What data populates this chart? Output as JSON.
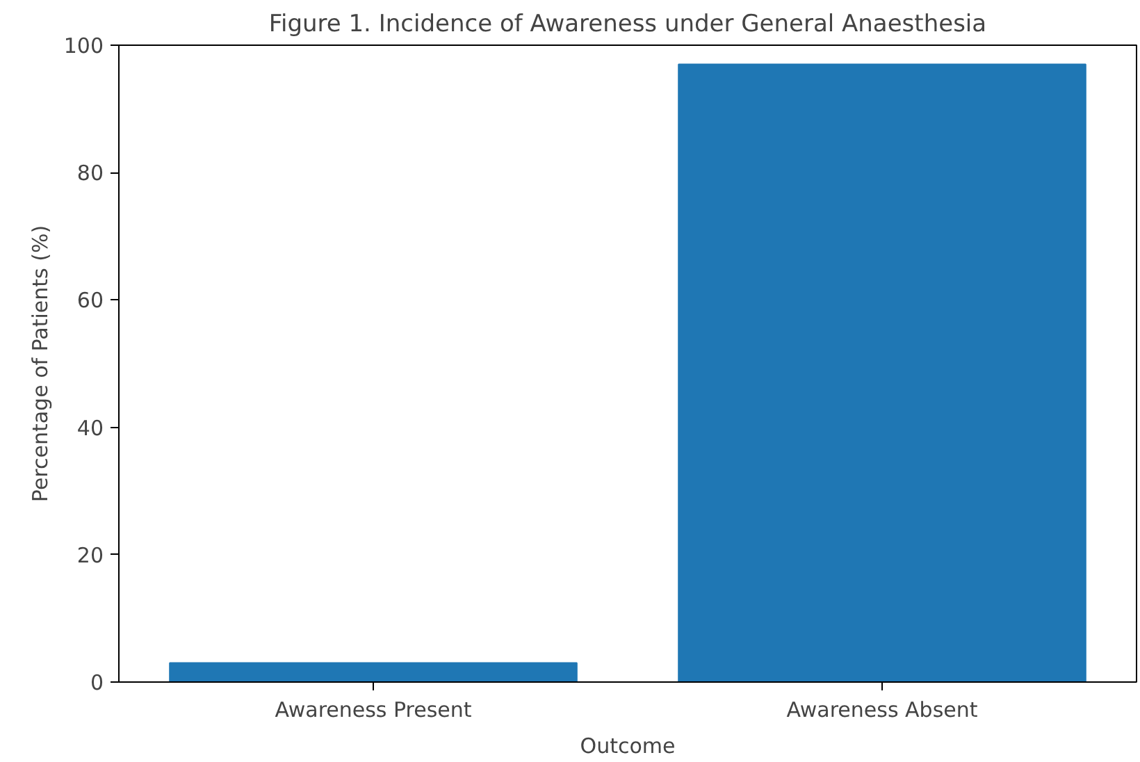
{
  "chart_data": {
    "type": "bar",
    "title": "Figure 1. Incidence of Awareness under General Anaesthesia",
    "xlabel": "Outcome",
    "ylabel": "Percentage of Patients (%)",
    "categories": [
      "Awareness Present",
      "Awareness Absent"
    ],
    "values": [
      3,
      97
    ],
    "color": "#1f77b4",
    "ylim": [
      0,
      100
    ],
    "yticks": [
      0,
      20,
      40,
      60,
      80,
      100
    ],
    "grid": false
  }
}
